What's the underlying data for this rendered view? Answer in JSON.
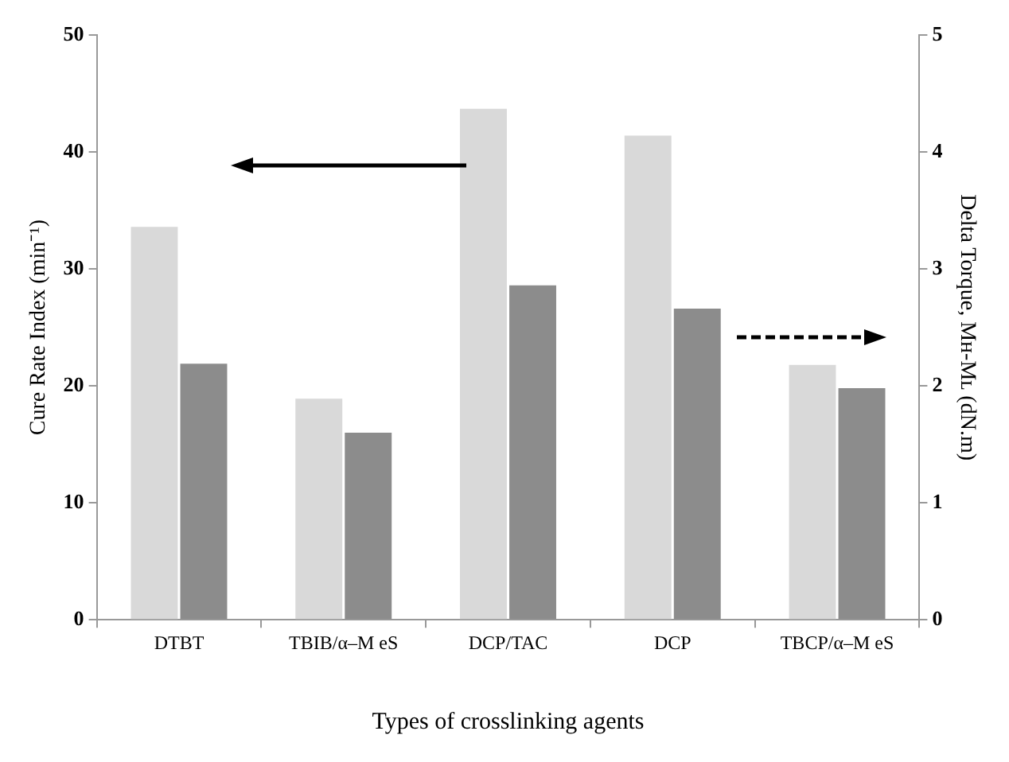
{
  "chart_data": {
    "type": "bar",
    "xlabel": "Types of crosslinking agents",
    "ylabel": "Cure Rate Index (min⁻¹)",
    "y2label": "Delta Torque, Mʜ-Mʟ (dN.m)",
    "categories": [
      "DTBT",
      "TBIB/α–M eS",
      "DCP/TAC",
      "DCP",
      "TBCP/α–M eS"
    ],
    "series": [
      {
        "color": "#d9d9d9",
        "values": [
          33.6,
          18.9,
          43.7,
          41.4,
          21.8
        ]
      },
      {
        "color": "#8c8c8c",
        "axis": "y2",
        "values": [
          2.19,
          1.6,
          2.86,
          2.66,
          1.98
        ]
      }
    ],
    "ylim": [
      0,
      50
    ],
    "yticks": [
      0,
      10,
      20,
      30,
      40,
      50
    ],
    "y2lim": [
      0,
      5
    ],
    "y2ticks": [
      0,
      1,
      2,
      3,
      4,
      5
    ],
    "grid": false,
    "legend": false
  }
}
